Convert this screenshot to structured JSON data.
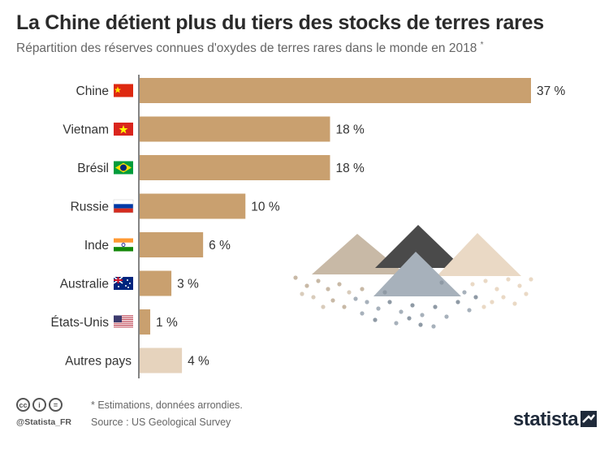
{
  "title": "La Chine détient plus du tiers des stocks de terres rares",
  "subtitle": "Répartition des réserves connues d'oxydes de terres rares dans le monde en 2018",
  "subtitle_mark": "*",
  "chart_data": {
    "type": "bar",
    "orientation": "horizontal",
    "categories": [
      "Chine",
      "Vietnam",
      "Brésil",
      "Russie",
      "Inde",
      "Australie",
      "États-Unis",
      "Autres pays"
    ],
    "values": [
      37,
      18,
      18,
      10,
      6,
      3,
      1,
      4
    ],
    "value_labels": [
      "37 %",
      "18 %",
      "18 %",
      "10 %",
      "6 %",
      "3 %",
      "1 %",
      "4 %"
    ],
    "unit": "%",
    "colors": {
      "bar": "#c9a06f",
      "bar_other": "#e6d3bd",
      "axis": "#333333"
    },
    "flags": [
      "china-flag",
      "vietnam-flag",
      "brazil-flag",
      "russia-flag",
      "india-flag",
      "australia-flag",
      "usa-flag",
      ""
    ]
  },
  "footer": {
    "note": "* Estimations, données arrondies.",
    "source": "Source : US Geological Survey",
    "handle": "@Statista_FR",
    "brand": "statista"
  }
}
